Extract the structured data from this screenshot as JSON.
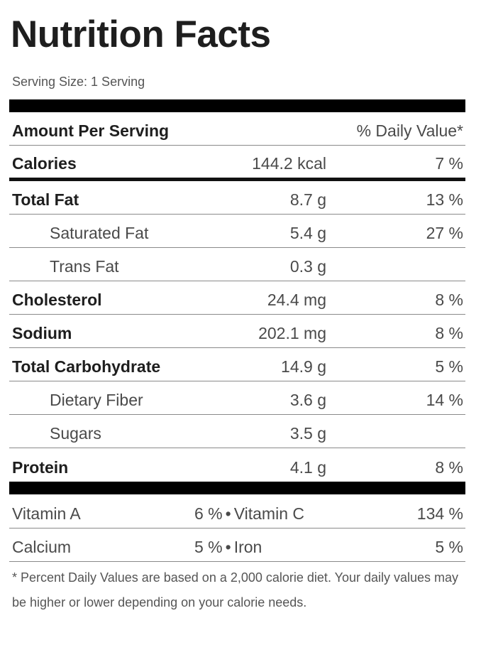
{
  "title": "Nutrition Facts",
  "serving_size": "Serving Size: 1 Serving",
  "header": {
    "amount_label": "Amount Per Serving",
    "dv_label": "% Daily Value*"
  },
  "calories": {
    "name": "Calories",
    "amount": "144.2 kcal",
    "dv": "7 %"
  },
  "nutrients": [
    {
      "name": "Total Fat",
      "amount": "8.7 g",
      "dv": "13 %"
    },
    {
      "name": "Saturated Fat",
      "amount": "5.4 g",
      "dv": "27 %"
    },
    {
      "name": "Trans Fat",
      "amount": "0.3 g",
      "dv": ""
    },
    {
      "name": "Cholesterol",
      "amount": "24.4 mg",
      "dv": "8 %"
    },
    {
      "name": "Sodium",
      "amount": "202.1 mg",
      "dv": "8 %"
    },
    {
      "name": "Total Carbohydrate",
      "amount": "14.9 g",
      "dv": "5 %"
    },
    {
      "name": "Dietary Fiber",
      "amount": "3.6 g",
      "dv": "14 %"
    },
    {
      "name": "Sugars",
      "amount": "3.5 g",
      "dv": ""
    },
    {
      "name": "Protein",
      "amount": "4.1 g",
      "dv": "8 %"
    }
  ],
  "vitamins": [
    {
      "left_name": "Vitamin A",
      "left_value": "6 %",
      "separator": "•",
      "right_name": "Vitamin C",
      "right_value": "134 %"
    },
    {
      "left_name": "Calcium",
      "left_value": "5 %",
      "separator": "•",
      "right_name": "Iron",
      "right_value": "5 %"
    }
  ],
  "footnote": "* Percent Daily Values are based on a 2,000 calorie diet. Your daily values may be higher or lower depending on your calorie needs."
}
